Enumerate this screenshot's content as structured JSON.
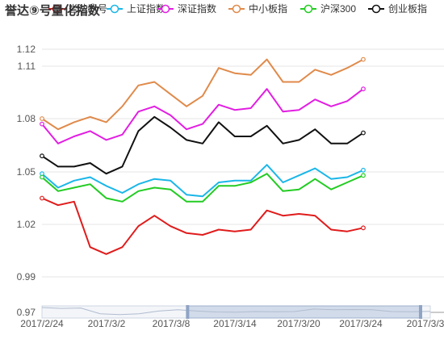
{
  "chart_data": {
    "type": "line",
    "title": "誉达⑨号量化指数",
    "legend_position": "top",
    "grid": true,
    "ylim": [
      0.97,
      1.12
    ],
    "yticks": [
      "0.97",
      "0.99",
      "1.02",
      "1.05",
      "1.08",
      "1.11",
      "1.12"
    ],
    "yticks_values": [
      0.97,
      0.99,
      1.02,
      1.05,
      1.08,
      1.11,
      1.12
    ],
    "xtick_labels": [
      "2017/2/24",
      "2017/3/2",
      "2017/3/8",
      "2017/3/14",
      "2017/3/20",
      "2017/3/24",
      "2017/3/3"
    ],
    "x": [
      "2017/2/24",
      "2017/2/27",
      "2017/2/28",
      "2017/3/1",
      "2017/3/2",
      "2017/3/3",
      "2017/3/6",
      "2017/3/7",
      "2017/3/8",
      "2017/3/9",
      "2017/3/10",
      "2017/3/13",
      "2017/3/14",
      "2017/3/15",
      "2017/3/16",
      "2017/3/17",
      "2017/3/20",
      "2017/3/21",
      "2017/3/22",
      "2017/3/23",
      "2017/3/24"
    ],
    "series": [
      {
        "name": "誉达⑨号",
        "color": "#e01b1b",
        "values": [
          1.035,
          1.031,
          1.033,
          1.007,
          1.003,
          1.007,
          1.019,
          1.025,
          1.019,
          1.015,
          1.014,
          1.017,
          1.016,
          1.017,
          1.028,
          1.025,
          1.026,
          1.025,
          1.017,
          1.016,
          1.018
        ]
      },
      {
        "name": "上证指数",
        "color": "#1ab6e8",
        "values": [
          1.049,
          1.041,
          1.045,
          1.047,
          1.042,
          1.038,
          1.043,
          1.046,
          1.045,
          1.037,
          1.036,
          1.044,
          1.045,
          1.045,
          1.054,
          1.044,
          1.048,
          1.052,
          1.046,
          1.047,
          1.051
        ]
      },
      {
        "name": "深证指数",
        "color": "#e21ee2",
        "values": [
          1.077,
          1.066,
          1.07,
          1.073,
          1.068,
          1.071,
          1.084,
          1.087,
          1.082,
          1.074,
          1.077,
          1.088,
          1.085,
          1.086,
          1.097,
          1.084,
          1.085,
          1.091,
          1.087,
          1.09,
          1.097
        ]
      },
      {
        "name": "中小板指",
        "color": "#e08a4a",
        "values": [
          1.08,
          1.074,
          1.078,
          1.081,
          1.078,
          1.087,
          1.099,
          1.101,
          1.094,
          1.087,
          1.093,
          1.109,
          1.106,
          1.105,
          1.114,
          1.101,
          1.101,
          1.108,
          1.105,
          1.109,
          1.114
        ]
      },
      {
        "name": "沪深300",
        "color": "#22cc22",
        "values": [
          1.047,
          1.039,
          1.041,
          1.043,
          1.035,
          1.033,
          1.039,
          1.041,
          1.04,
          1.033,
          1.033,
          1.042,
          1.042,
          1.044,
          1.049,
          1.039,
          1.04,
          1.046,
          1.04,
          1.044,
          1.048
        ]
      },
      {
        "name": "创业板指",
        "color": "#111111",
        "values": [
          1.059,
          1.053,
          1.053,
          1.055,
          1.049,
          1.053,
          1.073,
          1.081,
          1.075,
          1.068,
          1.066,
          1.078,
          1.07,
          1.07,
          1.076,
          1.066,
          1.068,
          1.074,
          1.066,
          1.066,
          1.072
        ]
      }
    ],
    "dataZoom": {
      "start": 0.375,
      "end": 0.975
    }
  }
}
